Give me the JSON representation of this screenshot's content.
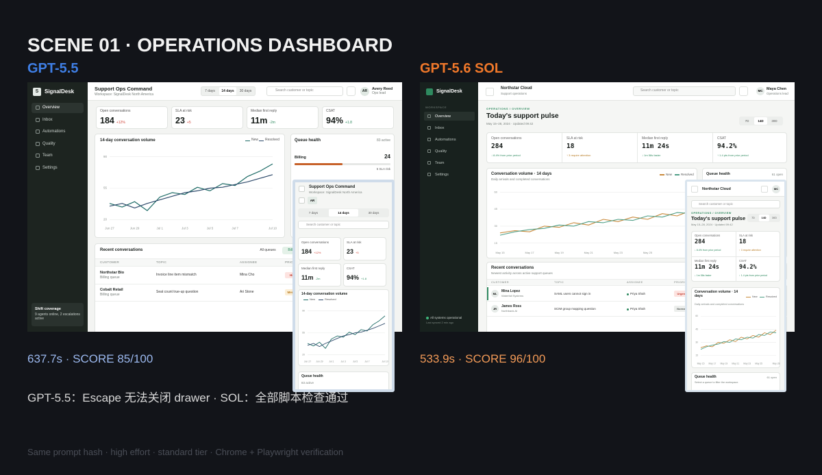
{
  "slide": {
    "title": "SCENE 01 · OPERATIONS DASHBOARD",
    "note": "GPT-5.5：Escape 无法关闭 drawer  ·  SOL：全部脚本检查通过",
    "footer": "Same prompt hash · high effort · standard tier · Chrome + Playwright verification"
  },
  "left": {
    "label": "GPT-5.5",
    "result": "637.7s · SCORE 85/100",
    "app": {
      "logo": "S",
      "brand": "SignalDesk",
      "nav": [
        "Overview",
        "Inbox",
        "Automations",
        "Quality",
        "Team",
        "Settings"
      ],
      "coverage": {
        "title": "Shift coverage",
        "text": "9 agents online, 2 escalations active"
      },
      "header": {
        "title": "Support Ops Command",
        "subtitle": "Workspace: SignalDesk North America"
      },
      "ranges": [
        "7 days",
        "14 days",
        "30 days"
      ],
      "search": "Search customer or topic",
      "user": {
        "initials": "AR",
        "name": "Avery Reed",
        "role": "Ops lead"
      },
      "kpis": [
        {
          "label": "Open conversations",
          "value": "184",
          "delta": "+12%",
          "delta_color": "#d0463b"
        },
        {
          "label": "SLA at risk",
          "value": "23",
          "delta": "+5",
          "delta_color": "#d0463b"
        },
        {
          "label": "Median first reply",
          "value": "11m",
          "delta": "-2m",
          "delta_color": "#2e8a5f"
        },
        {
          "label": "CSAT",
          "value": "94%",
          "delta": "+1.8",
          "delta_color": "#2e8a5f"
        }
      ],
      "queue": {
        "title": "Queue health",
        "count": "83 active",
        "name": "Billing",
        "value": "24",
        "note": "5 SLA risk"
      },
      "recent": {
        "title": "Recent conversations",
        "filters": [
          "All queues",
          "Billing"
        ],
        "columns": [
          "CUSTOMER",
          "TOPIC",
          "ASSIGNEE",
          "PRIORITY"
        ],
        "rows": [
          {
            "customer": "Northstar Bio",
            "queue": "Billing queue",
            "topic": "Invoice line item mismatch",
            "assignee": "Mina Cho",
            "priority": "High",
            "priority_color": "#c0392b",
            "priority_bg": "#fde3e0"
          },
          {
            "customer": "Cobalt Retail",
            "queue": "Billing queue",
            "topic": "Seat count true-up question",
            "assignee": "Ari Stone",
            "priority": "Medium",
            "priority_color": "#b7791f",
            "priority_bg": "#fcefd6"
          }
        ]
      }
    }
  },
  "right": {
    "label": "GPT-5.6 SOL",
    "result": "533.9s · SCORE 96/100",
    "app": {
      "brand": "SignalDesk",
      "workspace_label": "WORKSPACE",
      "nav": [
        "Overview",
        "Inbox",
        "Automations",
        "Quality",
        "Team",
        "Settings"
      ],
      "status": "All systems operational",
      "synced": "Last synced 2 min ago",
      "header": {
        "title": "Northstar Cloud",
        "subtitle": "Support operations"
      },
      "search": "Search customer or topic",
      "user": {
        "initials": "MC",
        "name": "Maya Chen",
        "role": "Operations lead"
      },
      "breadcrumb": "OPERATIONS / OVERVIEW",
      "page_title": "Today's support pulse",
      "date": "May 15–28, 2024 · Updated 09:42",
      "ranges": [
        "7D",
        "14D",
        "30D"
      ],
      "kpis": [
        {
          "label": "Open conversations",
          "value": "284",
          "delta": "↓ 8.4% from prior period",
          "delta_color": "#2e8a5f"
        },
        {
          "label": "SLA at risk",
          "value": "18",
          "delta": "↑ 3 require attention",
          "delta_color": "#b7791f"
        },
        {
          "label": "Median first reply",
          "value": "11m 24s",
          "delta": "↓ 1m 58s faster",
          "delta_color": "#2e8a5f"
        },
        {
          "label": "CSAT",
          "value": "94.2%",
          "delta": "↑ 1.4 pts from prior period",
          "delta_color": "#2e8a5f"
        }
      ],
      "queue": {
        "title": "Queue health",
        "count": "61 open",
        "hint": "Select a queue to filter the workspace."
      },
      "recent": {
        "title": "Recent conversations",
        "subtitle": "Newest activity across active support queues",
        "columns": [
          "CUSTOMER",
          "TOPIC",
          "ASSIGNEE",
          "PRIORITY"
        ],
        "rows": [
          {
            "initials": "ML",
            "customer": "Mina Lopez",
            "company": "Waterfall Systems",
            "topic": "SAML users cannot sign in",
            "assignee": "Priya Shah",
            "priority": "Urgent",
            "priority_color": "#c0392b",
            "priority_bg": "#fde3e0"
          },
          {
            "initials": "JR",
            "customer": "James Ross",
            "company": "Northbank AI",
            "topic": "SCIM group mapping question",
            "assignee": "Priya Shah",
            "priority": "Normal",
            "priority_color": "#555b57",
            "priority_bg": "#eceeec"
          }
        ]
      }
    }
  },
  "chart_data": [
    {
      "type": "line",
      "title": "14-day conversation volume",
      "categories": [
        "Jun 27",
        null,
        "Jun 29",
        null,
        "Jul 1",
        null,
        "Jul 3",
        null,
        "Jul 5",
        null,
        "Jul 7",
        null,
        null,
        "Jul 10"
      ],
      "ylim": [
        15,
        95
      ],
      "yticks": [
        20,
        55,
        90
      ],
      "series": [
        {
          "name": "New",
          "color": "#1d6b66",
          "values": [
            38,
            34,
            40,
            30,
            45,
            50,
            48,
            56,
            52,
            60,
            58,
            68,
            74,
            82
          ]
        },
        {
          "name": "Resolved",
          "color": "#2e4a6b",
          "values": [
            35,
            38,
            33,
            38,
            42,
            46,
            50,
            52,
            55,
            56,
            59,
            62,
            66,
            70
          ]
        }
      ]
    },
    {
      "type": "line",
      "title": "Conversation volume · 14 days",
      "subtitle": "Daily arrivals and completed conversations",
      "categories": [
        "May 15",
        null,
        "May 17",
        null,
        "May 19",
        null,
        "May 21",
        null,
        "May 23",
        null,
        "May 25",
        null,
        null,
        "May 28"
      ],
      "ylim": [
        10,
        65
      ],
      "yticks": [
        15,
        30,
        45,
        60
      ],
      "series": [
        {
          "name": "New",
          "color": "#c98a3c",
          "values": [
            24,
            26,
            25,
            30,
            29,
            33,
            31,
            36,
            34,
            38,
            36,
            41,
            39,
            44
          ]
        },
        {
          "name": "Resolved",
          "color": "#4f9f87",
          "values": [
            22,
            25,
            27,
            28,
            31,
            30,
            34,
            33,
            36,
            35,
            39,
            38,
            42,
            41
          ]
        }
      ]
    }
  ]
}
